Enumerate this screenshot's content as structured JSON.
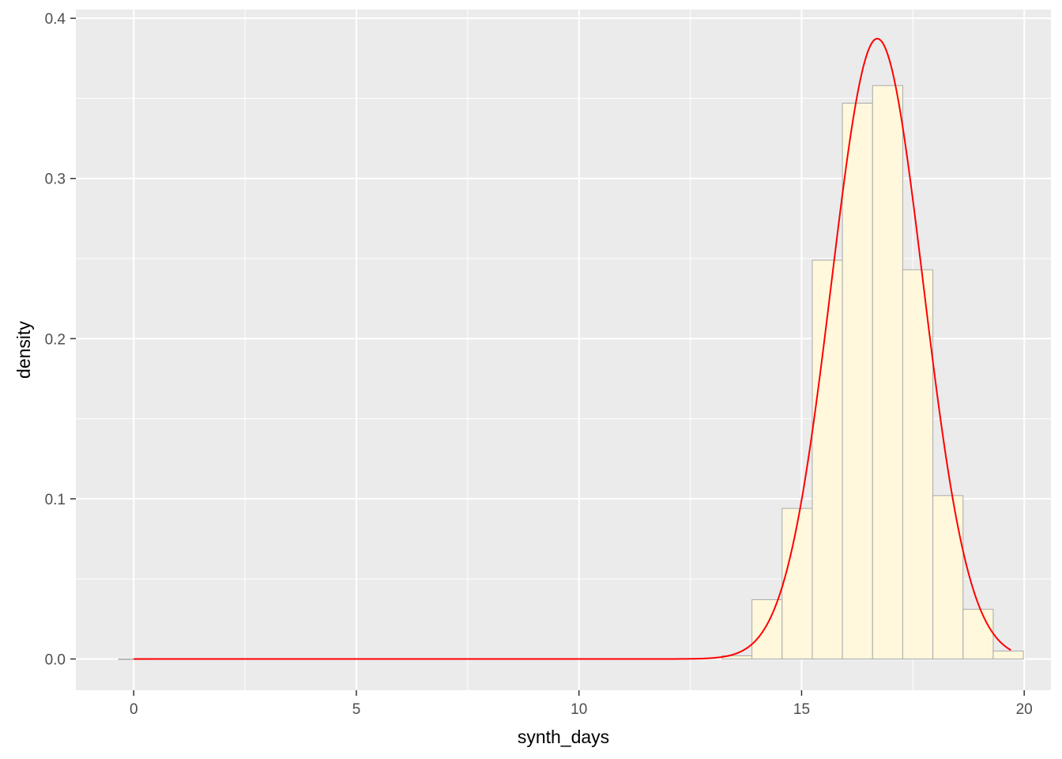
{
  "chart_data": {
    "type": "bar",
    "title": "",
    "xlabel": "synth_days",
    "ylabel": "density",
    "xlim": [
      -1.3,
      20.6
    ],
    "ylim": [
      -0.0195,
      0.4055
    ],
    "x_ticks": [
      0,
      5,
      10,
      15,
      20
    ],
    "y_ticks": [
      0.0,
      0.1,
      0.2,
      0.3,
      0.4
    ],
    "x_tick_labels": [
      "0",
      "5",
      "10",
      "15",
      "20"
    ],
    "y_tick_labels": [
      "0.0",
      "0.1",
      "0.2",
      "0.3",
      "0.4"
    ],
    "grid": true,
    "legend": "none",
    "bin_width": 0.677,
    "bins": [
      {
        "x_start": -0.34,
        "x_end": 0.337,
        "density": 0.0
      },
      {
        "x_start": 13.21,
        "x_end": 13.885,
        "density": 0.002
      },
      {
        "x_start": 13.885,
        "x_end": 14.562,
        "density": 0.037
      },
      {
        "x_start": 14.562,
        "x_end": 15.24,
        "density": 0.094
      },
      {
        "x_start": 15.24,
        "x_end": 15.917,
        "density": 0.249
      },
      {
        "x_start": 15.917,
        "x_end": 16.594,
        "density": 0.347
      },
      {
        "x_start": 16.594,
        "x_end": 17.271,
        "density": 0.358
      },
      {
        "x_start": 17.271,
        "x_end": 17.948,
        "density": 0.243
      },
      {
        "x_start": 17.948,
        "x_end": 18.626,
        "density": 0.102
      },
      {
        "x_start": 18.626,
        "x_end": 19.303,
        "density": 0.031
      },
      {
        "x_start": 19.303,
        "x_end": 19.98,
        "density": 0.005
      }
    ],
    "density_curve": {
      "type": "normal",
      "mean": 16.7,
      "sd": 1.03,
      "x_range": [
        0,
        19.7
      ],
      "color": "#ff0000"
    },
    "colors": {
      "panel_background": "#ebebeb",
      "grid_major": "#ffffff",
      "bar_fill": "#fff8dc",
      "bar_outline": "#a9a9a9",
      "curve": "#ff0000"
    }
  }
}
